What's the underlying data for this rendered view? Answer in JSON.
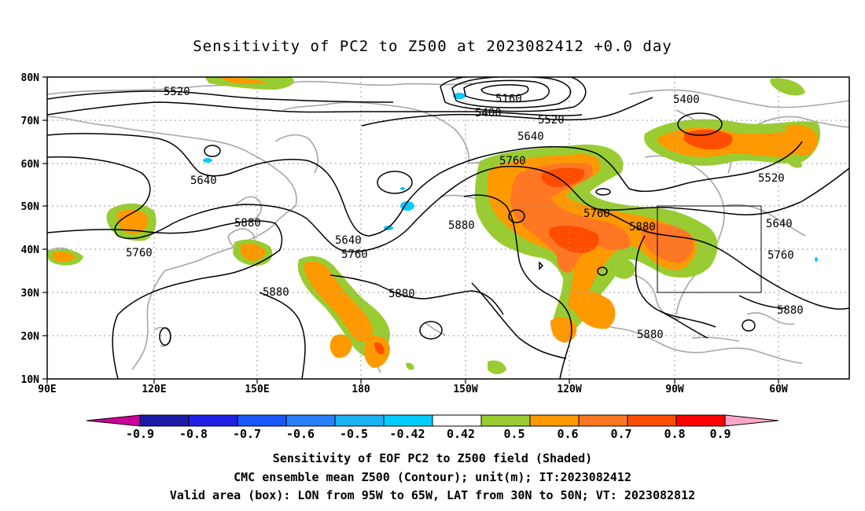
{
  "title": "Sensitivity of PC2 to Z500 at 2023082412 +0.0 day",
  "lat_labels": [
    "80N",
    "70N",
    "60N",
    "50N",
    "40N",
    "30N",
    "20N",
    "10N"
  ],
  "lon_labels": [
    "90E",
    "120E",
    "150E",
    "180",
    "150W",
    "120W",
    "90W",
    "60W"
  ],
  "contour_labels": [
    "5520",
    "5160",
    "5400",
    "5520",
    "5400",
    "5640",
    "5760",
    "5640",
    "5520",
    "5880",
    "5760",
    "5880",
    "5640",
    "5760",
    "5880",
    "5760",
    "5880",
    "5880",
    "5880",
    "5880"
  ],
  "colorbar": {
    "labels": [
      "-0.9",
      "-0.8",
      "-0.7",
      "-0.6",
      "-0.5",
      "-0.42",
      "0.42",
      "0.5",
      "0.6",
      "0.7",
      "0.8",
      "0.9"
    ],
    "colors": [
      "#cc0099",
      "#1a1aa6",
      "#1f1fe6",
      "#1a57ff",
      "#2b7fff",
      "#1ab2f0",
      "#00ccff",
      "#ffffff",
      "#99cc33",
      "#ff9900",
      "#ff7722",
      "#ff4d00",
      "#ff0000",
      "#ffa6c9"
    ]
  },
  "valid_box": {
    "lon_min": -95,
    "lon_max": -65,
    "lat_min": 30,
    "lat_max": 50
  },
  "captions": [
    "Sensitivity of EOF PC2 to Z500 field (Shaded)",
    "CMC ensemble mean Z500 (Contour); unit(m); IT:2023082412",
    "Valid area (box): LON from 95W to 65W, LAT from 30N to 50N; VT: 2023082812"
  ]
}
